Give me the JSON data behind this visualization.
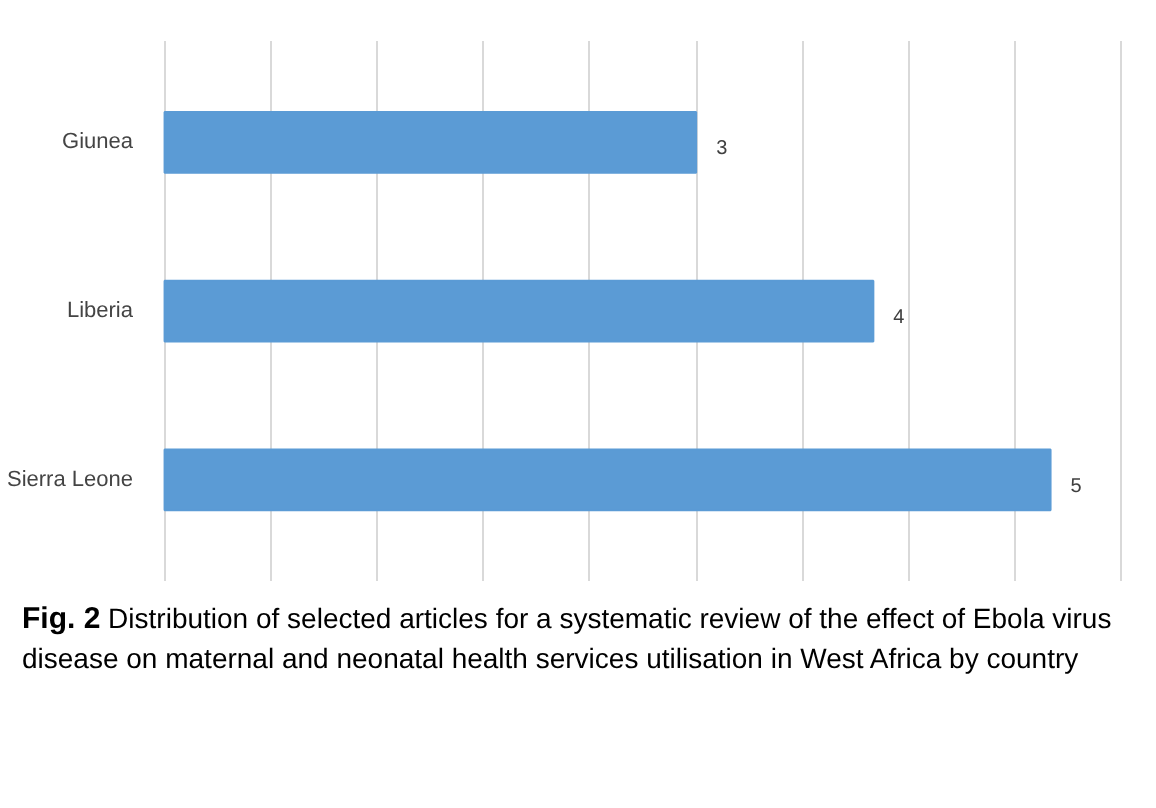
{
  "chart_data": {
    "type": "bar",
    "orientation": "horizontal",
    "categories": [
      "Giunea",
      "Liberia",
      "Sierra Leone"
    ],
    "values": [
      3,
      4,
      5
    ],
    "color": "#5b9bd5",
    "xticks": [
      {
        "value": 0,
        "label": null
      },
      {
        "value": 0.6,
        "label": null
      },
      {
        "value": 1.2,
        "label": null
      },
      {
        "value": 1.8,
        "label": null
      },
      {
        "value": 2.4,
        "label": null
      },
      {
        "value": 3.0,
        "label": null
      },
      {
        "value": 3.6,
        "label": null
      },
      {
        "value": 4.2,
        "label": null
      },
      {
        "value": 4.8,
        "label": null
      },
      {
        "value": 5.4,
        "label": null
      }
    ],
    "tick_labels": "y",
    "grid": "x",
    "data_labels": true,
    "annotations": [
      "Fig. 2",
      "Distribution of selected articles for a systematic review of the effect of Ebola virus disease on maternal and neonatal health services utilisation in West Africa by country"
    ]
  }
}
